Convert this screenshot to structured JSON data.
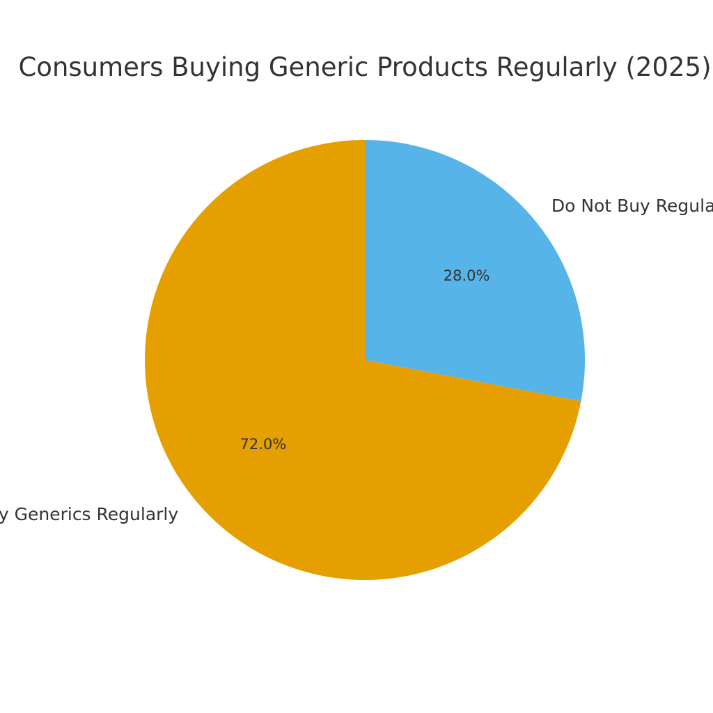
{
  "chart_data": {
    "type": "pie",
    "title": "Consumers Buying Generic Products Regularly (2025)",
    "slices": [
      {
        "label": "Do Not Buy Regularly",
        "value": 28.0,
        "pct_label": "28.0%",
        "color": "#56B4E9"
      },
      {
        "label": "Buy Generics Regularly",
        "value": 72.0,
        "pct_label": "72.0%",
        "color": "#E69F00"
      }
    ],
    "start_angle_deg": 90,
    "direction": "clockwise",
    "legend": "none"
  }
}
